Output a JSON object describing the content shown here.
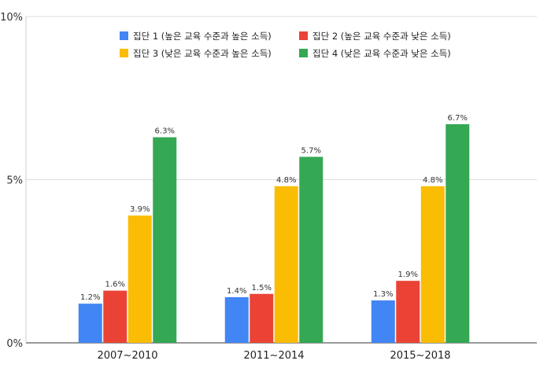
{
  "chart_data": {
    "type": "bar",
    "title": "",
    "xlabel": "",
    "ylabel": "",
    "ylim": [
      0,
      10
    ],
    "yticks": [
      {
        "v": 0,
        "label": "0%"
      },
      {
        "v": 5,
        "label": "5%"
      },
      {
        "v": 10,
        "label": "10%"
      }
    ],
    "grid": true,
    "legend_position": "top-center",
    "categories": [
      "2007~2010",
      "2011~2014",
      "2015~2018"
    ],
    "series": [
      {
        "name": "집단 1 (높은 교육 수준과 높은 소득)",
        "color": "#4285f4",
        "values": [
          1.2,
          1.4,
          1.3
        ],
        "labels": [
          "1.2%",
          "1.4%",
          "1.3%"
        ]
      },
      {
        "name": "집단 2 (높은 교육 수준과 낮은 소득)",
        "color": "#ea4335",
        "values": [
          1.6,
          1.5,
          1.9
        ],
        "labels": [
          "1.6%",
          "1.5%",
          "1.9%"
        ]
      },
      {
        "name": "집단 3 (낮은 교육 수준과 높은 소득)",
        "color": "#fbbc04",
        "values": [
          3.9,
          4.8,
          4.8
        ],
        "labels": [
          "3.9%",
          "4.8%",
          "4.8%"
        ]
      },
      {
        "name": "집단 4 (낮은 교육 수준과 낮은 소득)",
        "color": "#34a853",
        "values": [
          6.3,
          5.7,
          6.7
        ],
        "labels": [
          "6.3%",
          "5.7%",
          "6.7%"
        ]
      }
    ]
  }
}
